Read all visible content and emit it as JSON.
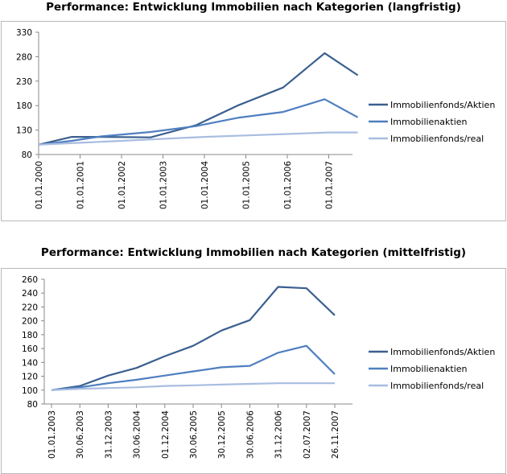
{
  "chart_data": [
    {
      "type": "line",
      "title": "Performance: Entwicklung Immobilien nach Kategorien (langfristig)",
      "categories": [
        "01.01.2000",
        "01.01.2001",
        "01.01.2002",
        "01.01.2003",
        "01.01.2004",
        "01.01.2005",
        "01.01.2006",
        "01.01.2007"
      ],
      "ylim": [
        80,
        330
      ],
      "yticks": [
        80,
        130,
        180,
        230,
        280,
        330
      ],
      "legend_position": "right",
      "grid": false,
      "series": [
        {
          "name": "Immobilienfonds/Aktien",
          "color": "#3b5f8f",
          "points": [
            [
              0,
              100
            ],
            [
              0.8,
              116
            ],
            [
              1.5,
              116
            ],
            [
              2.7,
              115
            ],
            [
              3.8,
              140
            ],
            [
              4.8,
              180
            ],
            [
              5.9,
              217
            ],
            [
              6.9,
              287
            ],
            [
              7.7,
              242
            ]
          ]
        },
        {
          "name": "Immobilienaktien",
          "color": "#4f7fc0",
          "points": [
            [
              0,
              100
            ],
            [
              0.8,
              108
            ],
            [
              1.5,
              117
            ],
            [
              2.7,
              126
            ],
            [
              3.8,
              138
            ],
            [
              4.8,
              155
            ],
            [
              5.9,
              167
            ],
            [
              6.9,
              193
            ],
            [
              7.7,
              156
            ]
          ]
        },
        {
          "name": "Immobilienfonds/real",
          "color": "#a8bde0",
          "points": [
            [
              0,
              100
            ],
            [
              1.0,
              104
            ],
            [
              2.0,
              108
            ],
            [
              3.0,
              112
            ],
            [
              4.0,
              116
            ],
            [
              5.0,
              119
            ],
            [
              6.0,
              122
            ],
            [
              7.0,
              125
            ],
            [
              7.7,
              125
            ]
          ]
        }
      ]
    },
    {
      "type": "line",
      "title": "Performance: Entwicklung Immobilien nach Kategorien (mittelfristig)",
      "categories": [
        "01.01.2003",
        "30.06.2003",
        "31.12.2003",
        "30.06.2004",
        "01.12.2004",
        "30.06.2005",
        "30.12.2005",
        "30.06.2006",
        "31.12.2006",
        "02.07.2007",
        "26.11.2007"
      ],
      "ylim": [
        80,
        260
      ],
      "yticks": [
        80,
        100,
        120,
        140,
        160,
        180,
        200,
        220,
        240,
        260
      ],
      "legend_position": "right",
      "grid": false,
      "series": [
        {
          "name": "Immobilienfonds/Aktien",
          "color": "#3b5f8f",
          "values": [
            100,
            106,
            121,
            132,
            149,
            164,
            186,
            201,
            249,
            247,
            208
          ]
        },
        {
          "name": "Immobilienaktien",
          "color": "#4f7fc0",
          "values": [
            100,
            104,
            110,
            115,
            121,
            127,
            133,
            135,
            154,
            164,
            123
          ]
        },
        {
          "name": "Immobilienfonds/real",
          "color": "#a8bde0",
          "values": [
            100,
            102,
            103,
            104,
            106,
            107,
            108,
            109,
            110,
            110,
            110
          ]
        }
      ]
    }
  ]
}
